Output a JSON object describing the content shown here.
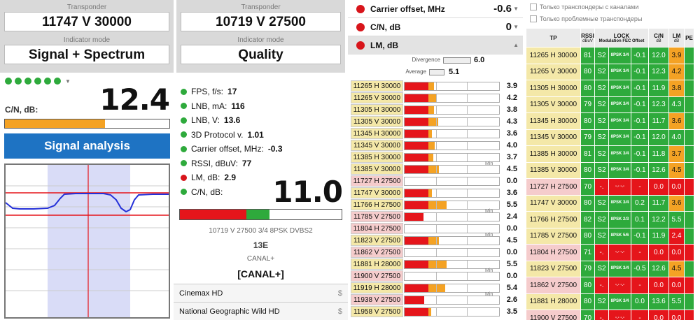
{
  "left_panel": {
    "transponder_label": "Transponder",
    "transponder_value": "11747 V 30000",
    "indicator_label": "Indicator mode",
    "indicator_value": "Signal + Spectrum",
    "cn_label": "C/N, dB:",
    "cn_value": "12.4",
    "cn_fill": 0.61,
    "button_label": "Signal analysis",
    "bar_color": "#f4a224",
    "button_color": "#1e73c3"
  },
  "middle_panel": {
    "transponder_label": "Transponder",
    "transponder_value": "10719 V 27500",
    "indicator_label": "Indicator mode",
    "indicator_value": "Quality",
    "indicators": [
      {
        "label": "FPS, f/s:",
        "value": "17",
        "color": "#2eaa3c"
      },
      {
        "label": "LNB, mA:",
        "value": "116",
        "color": "#2eaa3c"
      },
      {
        "label": "LNB, V:",
        "value": "13.6",
        "color": "#2eaa3c"
      },
      {
        "label": "3D Protocol v.",
        "value": "1.01",
        "color": "#2eaa3c"
      },
      {
        "label": "Carrier offset, MHz:",
        "value": "-0.3",
        "color": "#2eaa3c"
      },
      {
        "label": "RSSI, dBuV:",
        "value": "77",
        "color": "#2eaa3c"
      },
      {
        "label": "LM, dB:",
        "value": "2.9",
        "color": "#d8151b"
      },
      {
        "label": "C/N, dB:",
        "value": "",
        "color": "#2eaa3c"
      }
    ],
    "big_value": "11.0",
    "info_line": "10719 V 27500 3/4 8PSK DVBS2",
    "satellite": "13E",
    "provider": "CANAL+",
    "provider_bracket": "[CANAL+]",
    "channels": [
      {
        "name": "Cinemax HD",
        "mark": "$"
      },
      {
        "name": "National Geographic Wild HD",
        "mark": "$"
      }
    ]
  },
  "lm_panel": {
    "params": [
      {
        "label": "Carrier offset, MHz",
        "value": "-0.6",
        "caret": "▼"
      },
      {
        "label": "C/N, dB",
        "value": "0",
        "caret": "▼"
      },
      {
        "label": "LM, dB",
        "value": "",
        "caret": "▲"
      }
    ],
    "divergence_label": "Divergence",
    "divergence_value": "6.0",
    "average_label": "Average",
    "average_value": "5.1",
    "min_label": "Min",
    "rows": [
      {
        "tp": "11265 H 30000",
        "value": "3.9",
        "red": 0.25,
        "orange": 0.06,
        "bg": "#f4e8a8",
        "min": false
      },
      {
        "tp": "11265 V 30000",
        "value": "4.2",
        "red": 0.25,
        "orange": 0.09,
        "bg": "#f4e8a8",
        "min": false
      },
      {
        "tp": "11305 H 30000",
        "value": "3.8",
        "red": 0.25,
        "orange": 0.06,
        "bg": "#f4e8a8",
        "min": false
      },
      {
        "tp": "11305 V 30000",
        "value": "4.3",
        "red": 0.25,
        "orange": 0.1,
        "bg": "#f4e8a8",
        "min": false
      },
      {
        "tp": "11345 H 30000",
        "value": "3.6",
        "red": 0.25,
        "orange": 0.04,
        "bg": "#f4e8a8",
        "min": false
      },
      {
        "tp": "11345 V 30000",
        "value": "4.0",
        "red": 0.25,
        "orange": 0.07,
        "bg": "#f4e8a8",
        "min": false
      },
      {
        "tp": "11385 H 30000",
        "value": "3.7",
        "red": 0.25,
        "orange": 0.05,
        "bg": "#f4e8a8",
        "min": false
      },
      {
        "tp": "11385 V 30000",
        "value": "4.5",
        "red": 0.25,
        "orange": 0.11,
        "bg": "#f4e8a8",
        "min": true
      },
      {
        "tp": "11727 H 27500",
        "value": "0.0",
        "red": 0.0,
        "orange": 0.0,
        "bg": "#f5cccc",
        "min": false
      },
      {
        "tp": "11747 V 30000",
        "value": "3.6",
        "red": 0.25,
        "orange": 0.04,
        "bg": "#f4e8a8",
        "min": false
      },
      {
        "tp": "11766 H 27500",
        "value": "5.5",
        "red": 0.25,
        "orange": 0.19,
        "bg": "#f4e8a8",
        "min": false
      },
      {
        "tp": "11785 V 27500",
        "value": "2.4",
        "red": 0.2,
        "orange": 0.0,
        "bg": "#f5cccc",
        "min": true
      },
      {
        "tp": "11804 H 27500",
        "value": "0.0",
        "red": 0.0,
        "orange": 0.0,
        "bg": "#f5cccc",
        "min": false
      },
      {
        "tp": "11823 V 27500",
        "value": "4.5",
        "red": 0.25,
        "orange": 0.11,
        "bg": "#f4e8a8",
        "min": true
      },
      {
        "tp": "11862 V 27500",
        "value": "0.0",
        "red": 0.0,
        "orange": 0.0,
        "bg": "#f5cccc",
        "min": false
      },
      {
        "tp": "11881 H 28000",
        "value": "5.5",
        "red": 0.25,
        "orange": 0.19,
        "bg": "#f4e8a8",
        "min": false
      },
      {
        "tp": "11900 V 27500",
        "value": "0.0",
        "red": 0.0,
        "orange": 0.0,
        "bg": "#f5cccc",
        "min": true
      },
      {
        "tp": "11919 H 28000",
        "value": "5.4",
        "red": 0.25,
        "orange": 0.18,
        "bg": "#f4e8a8",
        "min": false
      },
      {
        "tp": "11938 V 27500",
        "value": "2.6",
        "red": 0.21,
        "orange": 0.0,
        "bg": "#f5cccc",
        "min": true
      },
      {
        "tp": "11958 V 27500",
        "value": "3.5",
        "red": 0.25,
        "orange": 0.03,
        "bg": "#f4e8a8",
        "min": false
      }
    ]
  },
  "table_panel": {
    "checkbox_channels": "Только транспондеры с каналами",
    "checkbox_problem": "Только проблемные транспондеры",
    "headers": {
      "tp": "TP",
      "rssi": "RSSI",
      "rssi_unit": "dBuV",
      "lock": "LOCK",
      "lock_sub": "Modulation FEC Offset",
      "cn": "C/N",
      "cn_unit": "dB",
      "lm": "LM",
      "lm_unit": "dB",
      "pe": "PE"
    },
    "rows": [
      {
        "tp": "11265 H 30000",
        "rssi": "81",
        "sys": "S2",
        "mod": "8PSK 3/4",
        "off": "-0.1",
        "cn": "12.0",
        "lm": "3.9",
        "lmc": "o",
        "ok": true
      },
      {
        "tp": "11265 V 30000",
        "rssi": "80",
        "sys": "S2",
        "mod": "8PSK 3/4",
        "off": "-0.1",
        "cn": "12.3",
        "lm": "4.2",
        "lmc": "o",
        "ok": true
      },
      {
        "tp": "11305 H 30000",
        "rssi": "80",
        "sys": "S2",
        "mod": "8PSK 3/4",
        "off": "-0.1",
        "cn": "11.9",
        "lm": "3.8",
        "lmc": "o",
        "ok": true
      },
      {
        "tp": "11305 V 30000",
        "rssi": "79",
        "sys": "S2",
        "mod": "8PSK 3/4",
        "off": "-0.1",
        "cn": "12.3",
        "lm": "4.3",
        "lmc": "g",
        "ok": true
      },
      {
        "tp": "11345 H 30000",
        "rssi": "80",
        "sys": "S2",
        "mod": "8PSK 3/4",
        "off": "-0.1",
        "cn": "11.7",
        "lm": "3.6",
        "lmc": "o",
        "ok": true
      },
      {
        "tp": "11345 V 30000",
        "rssi": "79",
        "sys": "S2",
        "mod": "8PSK 3/4",
        "off": "-0.1",
        "cn": "12.0",
        "lm": "4.0",
        "lmc": "g",
        "ok": true
      },
      {
        "tp": "11385 H 30000",
        "rssi": "81",
        "sys": "S2",
        "mod": "8PSK 3/4",
        "off": "-0.1",
        "cn": "11.8",
        "lm": "3.7",
        "lmc": "o",
        "ok": true
      },
      {
        "tp": "11385 V 30000",
        "rssi": "80",
        "sys": "S2",
        "mod": "8PSK 3/4",
        "off": "-0.1",
        "cn": "12.6",
        "lm": "4.5",
        "lmc": "o",
        "ok": true
      },
      {
        "tp": "11727 H 27500",
        "rssi": "70",
        "sys": "-.",
        "mod": "-.- -.-",
        "off": "-",
        "cn": "0.0",
        "lm": "0.0",
        "lmc": "r",
        "ok": false
      },
      {
        "tp": "11747 V 30000",
        "rssi": "80",
        "sys": "S2",
        "mod": "8PSK 3/4",
        "off": "0.2",
        "cn": "11.7",
        "lm": "3.6",
        "lmc": "o",
        "ok": true
      },
      {
        "tp": "11766 H 27500",
        "rssi": "82",
        "sys": "S2",
        "mod": "8PSK 2/3",
        "off": "0.1",
        "cn": "12.2",
        "lm": "5.5",
        "lmc": "g",
        "ok": true
      },
      {
        "tp": "11785 V 27500",
        "rssi": "80",
        "sys": "S2",
        "mod": "8PSK 5/6",
        "off": "-0.1",
        "cn": "11.9",
        "lm": "2.4",
        "lmc": "r",
        "ok": true
      },
      {
        "tp": "11804 H 27500",
        "rssi": "71",
        "sys": "-.",
        "mod": "-.- -.-",
        "off": "-",
        "cn": "0.0",
        "lm": "0.0",
        "lmc": "r",
        "ok": false
      },
      {
        "tp": "11823 V 27500",
        "rssi": "79",
        "sys": "S2",
        "mod": "8PSK 3/4",
        "off": "-0.5",
        "cn": "12.6",
        "lm": "4.5",
        "lmc": "o",
        "ok": true
      },
      {
        "tp": "11862 V 27500",
        "rssi": "80",
        "sys": "-.",
        "mod": "-.- -.-",
        "off": "-",
        "cn": "0.0",
        "lm": "0.0",
        "lmc": "r",
        "ok": false
      },
      {
        "tp": "11881 H 28000",
        "rssi": "80",
        "sys": "S2",
        "mod": "8PSK 3/4",
        "off": "0.0",
        "cn": "13.6",
        "lm": "5.5",
        "lmc": "g",
        "ok": true
      },
      {
        "tp": "11900 V 27500",
        "rssi": "70",
        "sys": "-.",
        "mod": "-.- -.-",
        "off": "-",
        "cn": "0.0",
        "lm": "0.0",
        "lmc": "r",
        "ok": false
      }
    ]
  }
}
